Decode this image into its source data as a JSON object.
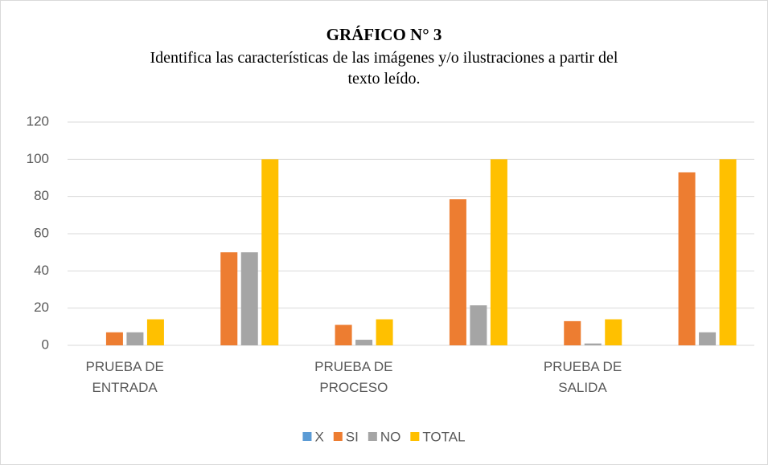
{
  "chart_data": {
    "type": "bar",
    "title": "GRÁFICO N° 3",
    "subtitle": "Identifica las características de las imágenes y/o ilustraciones a partir del texto leído.",
    "categories": [
      "PRUEBA DE ENTRADA",
      null,
      "PRUEBA DE PROCESO",
      null,
      "PRUEBA DE SALIDA",
      null
    ],
    "series": [
      {
        "name": "X",
        "color": "#5b9bd5",
        "values": [
          0,
          0,
          0,
          0,
          0,
          0
        ]
      },
      {
        "name": "SI",
        "color": "#ed7d31",
        "values": [
          7,
          50,
          11,
          78.5,
          13,
          93
        ]
      },
      {
        "name": "NO",
        "color": "#a5a5a5",
        "values": [
          7,
          50,
          3,
          21.5,
          1,
          7
        ]
      },
      {
        "name": "TOTAL",
        "color": "#ffc000",
        "values": [
          14,
          100,
          14,
          100,
          14,
          100
        ]
      }
    ],
    "ylim": [
      0,
      120
    ],
    "yticks": [
      0,
      20,
      40,
      60,
      80,
      100,
      120
    ],
    "grid": true,
    "legend": "bottom"
  }
}
